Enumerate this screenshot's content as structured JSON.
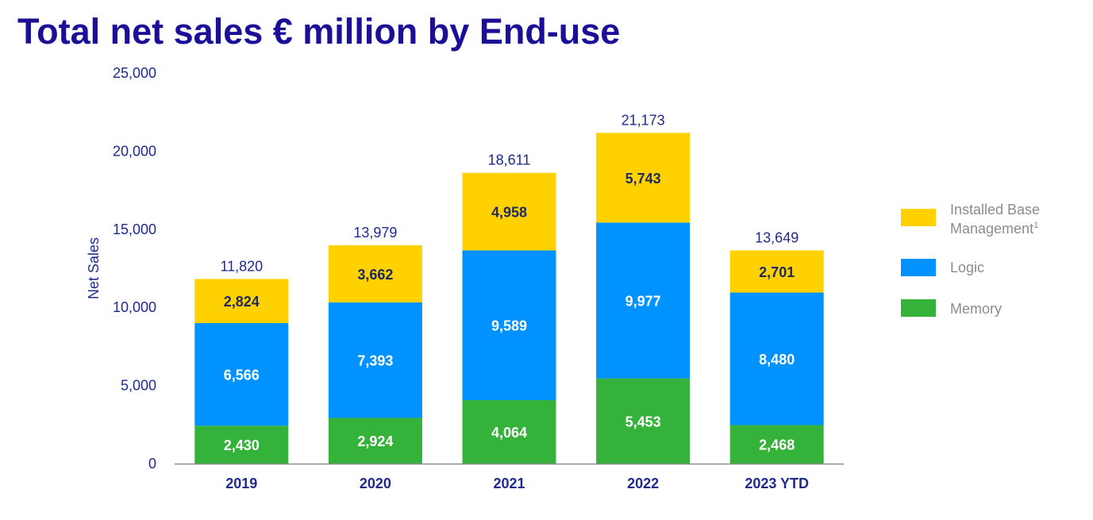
{
  "chart_data": {
    "type": "bar",
    "stacked": true,
    "title": "Total net sales € million by End-use",
    "ylabel": "Net Sales",
    "xlabel": "",
    "ylim": [
      0,
      25000
    ],
    "yticks": [
      0,
      5000,
      10000,
      15000,
      20000,
      25000
    ],
    "ytick_labels": [
      "0",
      "5,000",
      "10,000",
      "15,000",
      "20,000",
      "25,000"
    ],
    "grid": false,
    "legend_position": "right",
    "categories": [
      "2019",
      "2020",
      "2021",
      "2022",
      "2023 YTD"
    ],
    "series": [
      {
        "name": "Memory",
        "color": "#35b23a",
        "label_color": "#ffffff",
        "values": [
          2430,
          2924,
          4064,
          5453,
          2468
        ],
        "labels": [
          "2,430",
          "2,924",
          "4,064",
          "5,453",
          "2,468"
        ]
      },
      {
        "name": "Logic",
        "color": "#0093ff",
        "label_color": "#ffffff",
        "values": [
          6566,
          7393,
          9589,
          9977,
          8480
        ],
        "labels": [
          "6,566",
          "7,393",
          "9,589",
          "9,977",
          "8,480"
        ]
      },
      {
        "name": "Installed Base Management",
        "name_sup": "1",
        "color": "#ffd100",
        "label_color": "#1f2a5c",
        "values": [
          2824,
          3662,
          4958,
          5743,
          2701
        ],
        "labels": [
          "2,824",
          "3,662",
          "4,958",
          "5,743",
          "2,701"
        ]
      }
    ],
    "totals": [
      11820,
      13979,
      18611,
      21173,
      13649
    ],
    "total_labels": [
      "11,820",
      "13,979",
      "18,611",
      "21,173",
      "13,649"
    ],
    "legend": [
      {
        "lines": [
          "Installed Base",
          "Management"
        ],
        "sup": "1",
        "color": "#ffd100"
      },
      {
        "lines": [
          "Logic"
        ],
        "sup": "",
        "color": "#0093ff"
      },
      {
        "lines": [
          "Memory"
        ],
        "sup": "",
        "color": "#35b23a"
      }
    ],
    "colors": {
      "title": "#1a0f96",
      "axis_text": "#1f2a8c",
      "axis_line": "#8c8c8c",
      "legend_text": "#8c8c8c"
    }
  }
}
